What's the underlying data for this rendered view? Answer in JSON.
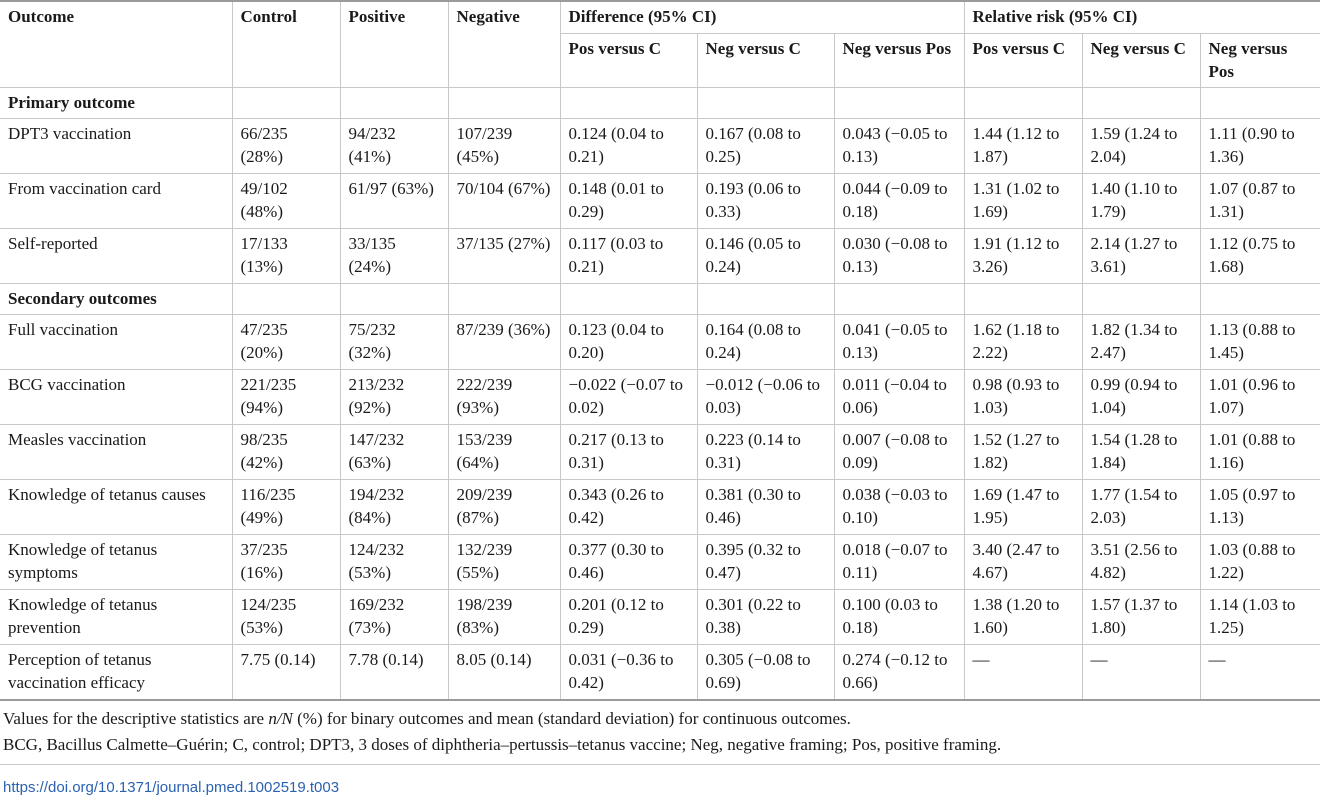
{
  "table": {
    "col_outcome": "Outcome",
    "col_control": "Control",
    "col_positive": "Positive",
    "col_negative": "Negative",
    "group_difference": "Difference (95% CI)",
    "group_rr": "Relative risk (95% CI)",
    "sub_pos_c": "Pos versus C",
    "sub_neg_c": "Neg versus C",
    "sub_neg_pos": "Neg versus Pos",
    "section_primary": "Primary outcome",
    "section_secondary": "Secondary outcomes",
    "rows": [
      {
        "outcome": "DPT3 vaccination",
        "control": "66/235 (28%)",
        "positive": "94/232 (41%)",
        "negative": "107/239 (45%)",
        "d_pos_c": "0.124 (0.04 to 0.21)",
        "d_neg_c": "0.167 (0.08 to 0.25)",
        "d_neg_pos": "0.043 (−0.05 to 0.13)",
        "r_pos_c": "1.44 (1.12 to 1.87)",
        "r_neg_c": "1.59 (1.24 to 2.04)",
        "r_neg_pos": "1.11 (0.90 to 1.36)"
      },
      {
        "outcome": "From vaccination card",
        "control": "49/102 (48%)",
        "positive": "61/97 (63%)",
        "negative": "70/104 (67%)",
        "d_pos_c": "0.148 (0.01 to 0.29)",
        "d_neg_c": "0.193 (0.06 to 0.33)",
        "d_neg_pos": "0.044 (−0.09 to 0.18)",
        "r_pos_c": "1.31 (1.02 to 1.69)",
        "r_neg_c": "1.40 (1.10 to 1.79)",
        "r_neg_pos": "1.07 (0.87 to 1.31)"
      },
      {
        "outcome": "Self-reported",
        "control": "17/133 (13%)",
        "positive": "33/135 (24%)",
        "negative": "37/135 (27%)",
        "d_pos_c": "0.117 (0.03 to 0.21)",
        "d_neg_c": "0.146 (0.05 to 0.24)",
        "d_neg_pos": "0.030 (−0.08 to 0.13)",
        "r_pos_c": "1.91 (1.12 to 3.26)",
        "r_neg_c": "2.14 (1.27 to 3.61)",
        "r_neg_pos": "1.12 (0.75 to 1.68)"
      },
      {
        "outcome": "Full vaccination",
        "control": "47/235 (20%)",
        "positive": "75/232 (32%)",
        "negative": "87/239 (36%)",
        "d_pos_c": "0.123 (0.04 to 0.20)",
        "d_neg_c": "0.164 (0.08 to 0.24)",
        "d_neg_pos": "0.041 (−0.05 to 0.13)",
        "r_pos_c": "1.62 (1.18 to 2.22)",
        "r_neg_c": "1.82 (1.34 to 2.47)",
        "r_neg_pos": "1.13 (0.88 to 1.45)"
      },
      {
        "outcome": "BCG vaccination",
        "control": "221/235 (94%)",
        "positive": "213/232 (92%)",
        "negative": "222/239 (93%)",
        "d_pos_c": "−0.022 (−0.07 to 0.02)",
        "d_neg_c": "−0.012 (−0.06 to 0.03)",
        "d_neg_pos": "0.011 (−0.04 to 0.06)",
        "r_pos_c": "0.98 (0.93 to 1.03)",
        "r_neg_c": "0.99 (0.94 to 1.04)",
        "r_neg_pos": "1.01 (0.96 to 1.07)"
      },
      {
        "outcome": "Measles vaccination",
        "control": "98/235 (42%)",
        "positive": "147/232 (63%)",
        "negative": "153/239 (64%)",
        "d_pos_c": "0.217 (0.13 to 0.31)",
        "d_neg_c": "0.223 (0.14 to 0.31)",
        "d_neg_pos": "0.007 (−0.08 to 0.09)",
        "r_pos_c": "1.52 (1.27 to 1.82)",
        "r_neg_c": "1.54 (1.28 to 1.84)",
        "r_neg_pos": "1.01 (0.88 to 1.16)"
      },
      {
        "outcome": "Knowledge of tetanus causes",
        "control": "116/235 (49%)",
        "positive": "194/232 (84%)",
        "negative": "209/239 (87%)",
        "d_pos_c": "0.343 (0.26 to 0.42)",
        "d_neg_c": "0.381 (0.30 to 0.46)",
        "d_neg_pos": "0.038 (−0.03 to 0.10)",
        "r_pos_c": "1.69 (1.47 to 1.95)",
        "r_neg_c": "1.77 (1.54 to 2.03)",
        "r_neg_pos": "1.05 (0.97 to 1.13)"
      },
      {
        "outcome": "Knowledge of tetanus symptoms",
        "control": "37/235 (16%)",
        "positive": "124/232 (53%)",
        "negative": "132/239 (55%)",
        "d_pos_c": "0.377 (0.30 to 0.46)",
        "d_neg_c": "0.395 (0.32 to 0.47)",
        "d_neg_pos": "0.018 (−0.07 to 0.11)",
        "r_pos_c": "3.40 (2.47 to 4.67)",
        "r_neg_c": "3.51 (2.56 to 4.82)",
        "r_neg_pos": "1.03 (0.88 to 1.22)"
      },
      {
        "outcome": "Knowledge of tetanus prevention",
        "control": "124/235 (53%)",
        "positive": "169/232 (73%)",
        "negative": "198/239 (83%)",
        "d_pos_c": "0.201 (0.12 to 0.29)",
        "d_neg_c": "0.301 (0.22 to 0.38)",
        "d_neg_pos": "0.100 (0.03 to 0.18)",
        "r_pos_c": "1.38 (1.20 to 1.60)",
        "r_neg_c": "1.57 (1.37 to 1.80)",
        "r_neg_pos": "1.14 (1.03 to 1.25)"
      },
      {
        "outcome": "Perception of tetanus vaccination efficacy",
        "control": "7.75 (0.14)",
        "positive": "7.78 (0.14)",
        "negative": "8.05 (0.14)",
        "d_pos_c": "0.031 (−0.36 to 0.42)",
        "d_neg_c": "0.305 (−0.08 to 0.69)",
        "d_neg_pos": "0.274 (−0.12 to 0.66)",
        "r_pos_c": "—",
        "r_neg_c": "—",
        "r_neg_pos": "—"
      }
    ]
  },
  "notes": {
    "line1_a": "Values for the descriptive statistics are ",
    "line1_em": "n/N",
    "line1_b": " (%) for binary outcomes and mean (standard deviation) for continuous outcomes.",
    "line2": "BCG, Bacillus Calmette–Guérin; C, control; DPT3, 3 doses of diphtheria–pertussis–tetanus vaccine; Neg, negative framing; Pos, positive framing."
  },
  "doi": "https://doi.org/10.1371/journal.pmed.1002519.t003",
  "colors": {
    "link": "#2a62b0",
    "rule": "#c8c8c8"
  }
}
